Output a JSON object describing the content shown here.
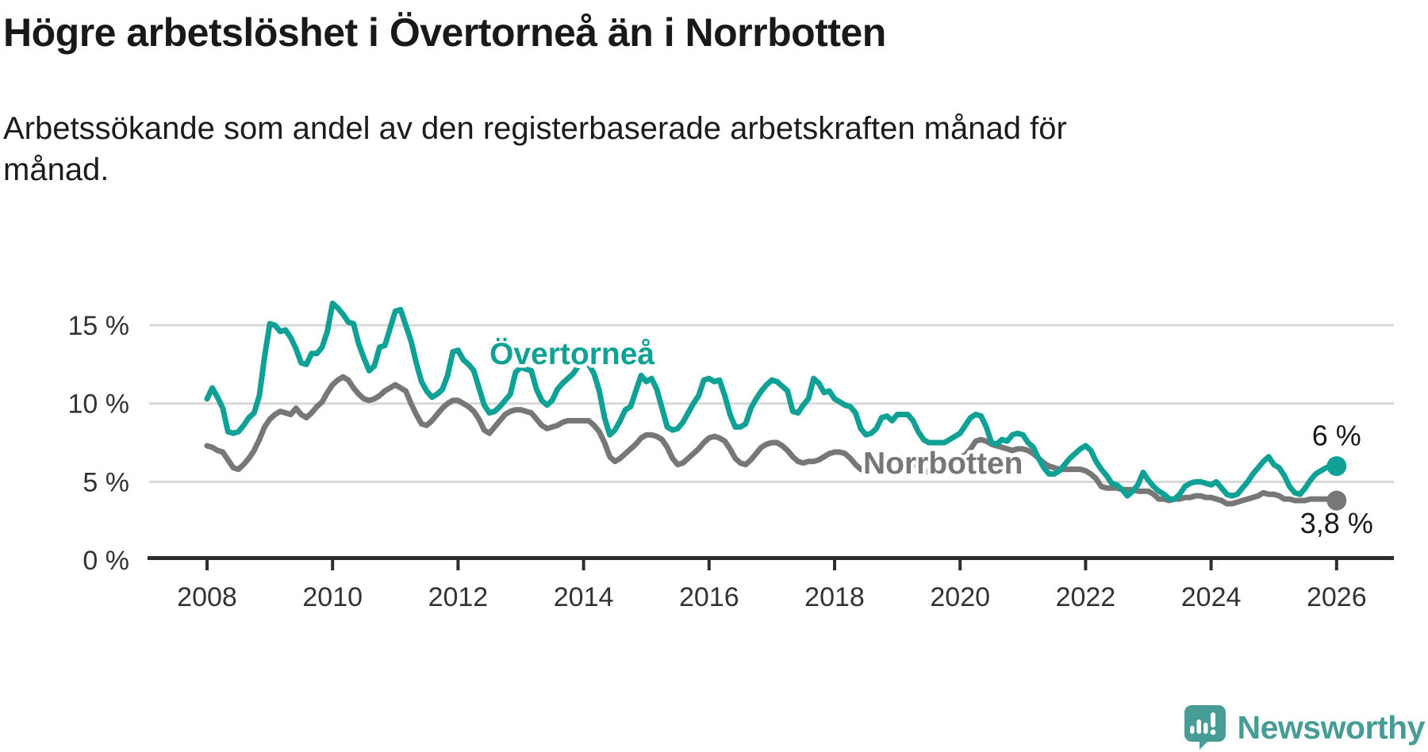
{
  "header": {
    "title": "Högre arbetslöshet i Övertorneå än i Norrbotten",
    "subtitle": "Arbetssökande som andel av den registerbaserade arbetskraften månad för månad."
  },
  "chart_data": {
    "type": "line",
    "title": "Högre arbetslöshet i Övertorneå än i Norrbotten",
    "xlabel": "",
    "ylabel": "",
    "unit": "%",
    "frequency": "monthly",
    "x_range": [
      "2008-01",
      "2026-01"
    ],
    "ylim": [
      0,
      17
    ],
    "grid": "horizontal",
    "x_tick_years": [
      2008,
      2010,
      2012,
      2014,
      2016,
      2018,
      2020,
      2022,
      2024,
      2026
    ],
    "y_ticks": [
      {
        "label": "0 %",
        "value": 0
      },
      {
        "label": "5 %",
        "value": 5
      },
      {
        "label": "10 %",
        "value": 10
      },
      {
        "label": "15 %",
        "value": 15
      }
    ],
    "series": [
      {
        "name": "Norrbotten",
        "color": "#777777",
        "end_label": "3,8 %",
        "last_value": 3.8,
        "values": [
          7.3,
          7.2,
          7.0,
          6.9,
          6.4,
          5.9,
          5.8,
          6.1,
          6.5,
          7.0,
          7.7,
          8.5,
          9.0,
          9.3,
          9.5,
          9.4,
          9.3,
          9.7,
          9.3,
          9.1,
          9.4,
          9.8,
          10.1,
          10.7,
          11.2,
          11.5,
          11.7,
          11.5,
          11.0,
          10.6,
          10.3,
          10.2,
          10.3,
          10.5,
          10.8,
          11.0,
          11.2,
          11.0,
          10.8,
          10.0,
          9.3,
          8.7,
          8.6,
          8.9,
          9.3,
          9.7,
          10.0,
          10.2,
          10.2,
          10.0,
          9.8,
          9.5,
          9.0,
          8.3,
          8.1,
          8.5,
          8.9,
          9.3,
          9.5,
          9.6,
          9.6,
          9.5,
          9.4,
          9.0,
          8.6,
          8.4,
          8.5,
          8.6,
          8.8,
          8.9,
          8.9,
          8.9,
          8.9,
          8.9,
          8.6,
          8.2,
          7.5,
          6.6,
          6.3,
          6.5,
          6.8,
          7.1,
          7.4,
          7.8,
          8.0,
          8.0,
          7.9,
          7.7,
          7.2,
          6.5,
          6.1,
          6.2,
          6.5,
          6.8,
          7.1,
          7.5,
          7.8,
          7.9,
          7.8,
          7.6,
          7.1,
          6.5,
          6.2,
          6.1,
          6.4,
          6.8,
          7.2,
          7.4,
          7.5,
          7.5,
          7.3,
          7.0,
          6.6,
          6.3,
          6.2,
          6.3,
          6.3,
          6.4,
          6.6,
          6.8,
          6.9,
          6.9,
          6.8,
          6.5,
          6.1,
          5.8,
          5.7,
          5.8,
          5.9,
          6.0,
          6.2,
          6.4,
          6.5,
          6.5,
          6.4,
          6.2,
          5.9,
          5.7,
          5.6,
          5.7,
          5.8,
          6.0,
          6.2,
          6.4,
          6.6,
          6.7,
          7.1,
          7.6,
          7.7,
          7.6,
          7.4,
          7.3,
          7.2,
          7.1,
          7.0,
          7.1,
          7.1,
          7.0,
          6.8,
          6.5,
          6.2,
          6.0,
          5.9,
          5.8,
          5.8,
          5.8,
          5.8,
          5.8,
          5.7,
          5.5,
          5.2,
          4.7,
          4.6,
          4.6,
          4.6,
          4.5,
          4.5,
          4.5,
          4.4,
          4.4,
          4.4,
          4.2,
          3.9,
          3.9,
          3.8,
          3.9,
          3.9,
          4.0,
          4.0,
          4.1,
          4.1,
          4.0,
          4.0,
          3.9,
          3.8,
          3.6,
          3.6,
          3.7,
          3.8,
          3.9,
          4.0,
          4.1,
          4.3,
          4.2,
          4.2,
          4.1,
          3.9,
          3.9,
          3.8,
          3.8,
          3.8,
          3.9,
          3.9,
          3.9,
          3.9,
          3.9,
          3.8
        ]
      },
      {
        "name": "Övertorneå",
        "color": "#0fa195",
        "end_label": "6 %",
        "last_value": 6.0,
        "values": [
          10.3,
          11.0,
          10.4,
          9.7,
          8.2,
          8.1,
          8.2,
          8.6,
          9.1,
          9.4,
          10.5,
          13.0,
          15.1,
          15.0,
          14.6,
          14.7,
          14.2,
          13.5,
          12.6,
          12.5,
          13.2,
          13.2,
          13.6,
          14.6,
          16.4,
          16.1,
          15.7,
          15.2,
          15.1,
          13.8,
          12.9,
          12.1,
          12.4,
          13.6,
          13.7,
          14.8,
          15.9,
          16.0,
          15.0,
          14.0,
          12.6,
          11.4,
          10.8,
          10.4,
          10.6,
          10.9,
          11.8,
          13.3,
          13.4,
          12.8,
          12.5,
          12.1,
          11.0,
          9.9,
          9.4,
          9.5,
          9.8,
          10.2,
          10.6,
          12.0,
          12.3,
          12.2,
          12.1,
          10.9,
          10.2,
          9.9,
          10.2,
          10.9,
          11.3,
          11.6,
          11.9,
          12.4,
          12.9,
          12.5,
          11.9,
          10.8,
          9.1,
          8.0,
          8.3,
          8.9,
          9.6,
          9.8,
          10.8,
          11.8,
          11.4,
          11.6,
          10.9,
          9.7,
          8.5,
          8.3,
          8.4,
          8.8,
          9.4,
          10.0,
          10.5,
          11.5,
          11.6,
          11.4,
          11.5,
          10.5,
          9.3,
          8.5,
          8.5,
          8.7,
          9.7,
          10.3,
          10.8,
          11.2,
          11.5,
          11.4,
          11.1,
          10.8,
          9.5,
          9.4,
          9.9,
          10.3,
          11.6,
          11.3,
          10.7,
          10.8,
          10.3,
          10.1,
          9.9,
          9.8,
          9.4,
          8.4,
          8.0,
          8.1,
          8.4,
          9.1,
          9.2,
          8.9,
          9.3,
          9.3,
          9.3,
          8.9,
          8.2,
          7.7,
          7.5,
          7.5,
          7.5,
          7.5,
          7.7,
          7.9,
          8.1,
          8.6,
          9.1,
          9.3,
          9.2,
          8.5,
          7.5,
          7.4,
          7.7,
          7.6,
          8.0,
          8.1,
          8.0,
          7.5,
          7.2,
          6.5,
          5.9,
          5.5,
          5.5,
          5.7,
          6.1,
          6.5,
          6.8,
          7.1,
          7.3,
          7.0,
          6.3,
          5.8,
          5.4,
          4.9,
          4.8,
          4.5,
          4.1,
          4.4,
          4.8,
          5.6,
          5.1,
          4.7,
          4.4,
          4.2,
          3.9,
          3.9,
          4.2,
          4.7,
          4.9,
          5.0,
          5.0,
          4.9,
          4.8,
          5.0,
          4.6,
          4.2,
          4.1,
          4.2,
          4.6,
          5.0,
          5.5,
          5.9,
          6.3,
          6.6,
          6.1,
          5.9,
          5.4,
          4.7,
          4.3,
          4.2,
          4.6,
          5.1,
          5.5,
          5.7,
          5.9,
          6.0,
          6.0
        ]
      }
    ],
    "colors": {
      "overtornea": "#0fa195",
      "norrbotten": "#777777",
      "gridline": "#d8d8d8",
      "axis": "#2d2d2d",
      "tick_text": "#333333",
      "annotation_text": "#191919"
    }
  },
  "branding": {
    "logo_text": "Newsworthy",
    "logo_color": "#489c96",
    "logo_icon": "newsworthy-speech-bubble-chart-icon"
  }
}
